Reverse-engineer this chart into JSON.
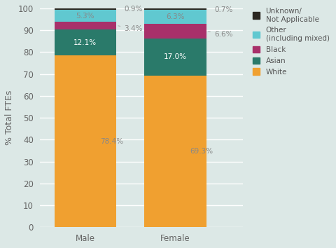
{
  "categories": [
    "Male",
    "Female"
  ],
  "series": [
    {
      "label": "White",
      "color": "#F0A030",
      "values": [
        78.4,
        69.3
      ]
    },
    {
      "label": "Asian",
      "color": "#2A7A6A",
      "values": [
        12.1,
        17.0
      ]
    },
    {
      "label": "Black",
      "color": "#A8306A",
      "values": [
        3.4,
        6.6
      ]
    },
    {
      "label": "Other (including mixed)",
      "color": "#60C8D0",
      "values": [
        5.3,
        6.3
      ]
    },
    {
      "label": "Unknown/\nNot Applicable",
      "color": "#2C2822",
      "values": [
        0.9,
        0.7
      ]
    }
  ],
  "ylabel": "% Total FTEs",
  "ylim": [
    0,
    100
  ],
  "background_color": "#dce8e6",
  "bar_width": 0.55,
  "bar_positions": [
    0.3,
    1.1
  ],
  "xlim": [
    -0.1,
    1.7
  ],
  "legend_labels": [
    "Unknown/\nNot Applicable",
    "Other\n(including mixed)",
    "Black",
    "Asian",
    "White"
  ],
  "legend_colors": [
    "#2C2822",
    "#60C8D0",
    "#A8306A",
    "#2A7A6A",
    "#F0A030"
  ],
  "grid_color": "#c8d8d6",
  "label_color": "#888888",
  "label_fontsize": 7.5,
  "tick_fontsize": 8.5,
  "ylabel_fontsize": 9
}
